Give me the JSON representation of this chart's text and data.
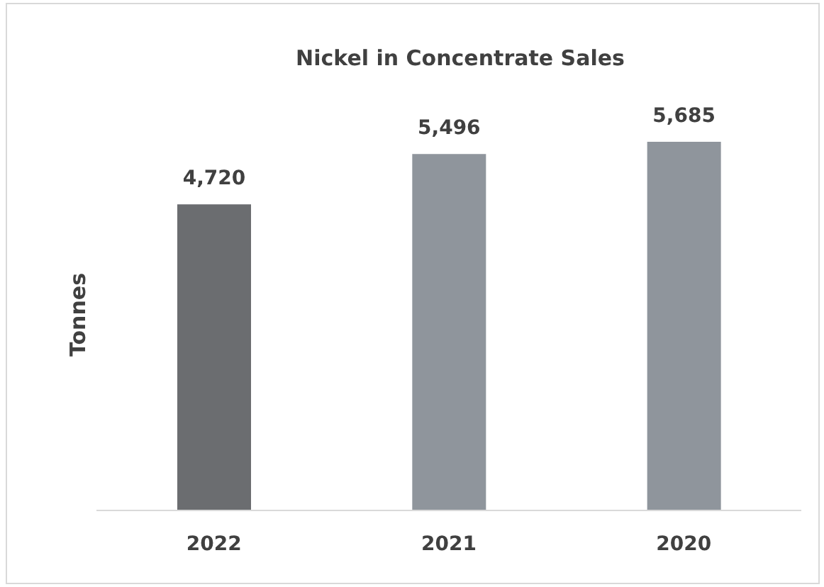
{
  "chart_data": {
    "type": "bar",
    "title": "Nickel in Concentrate Sales",
    "ylabel": "Tonnes",
    "categories": [
      "2022",
      "2021",
      "2020"
    ],
    "values": [
      4720,
      5496,
      5685
    ],
    "colors": [
      "#6b6d70",
      "#8f959c",
      "#8f959c"
    ],
    "data_labels": true,
    "value_labels": [
      "4,720",
      "5,496",
      "5,685"
    ],
    "grid": false,
    "legend": false
  }
}
